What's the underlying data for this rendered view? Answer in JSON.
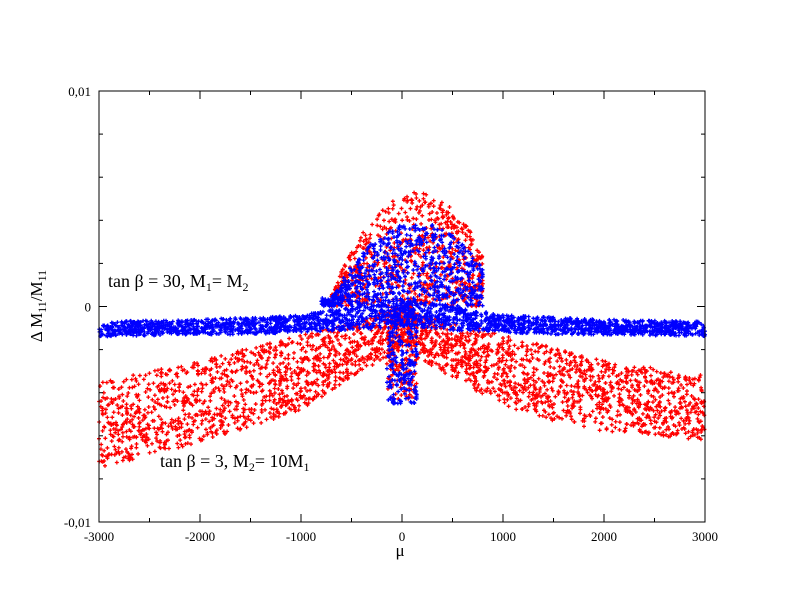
{
  "chart_data": {
    "type": "scatter",
    "title": "",
    "xlabel": "μ",
    "ylabel": {
      "prefix": "Δ M",
      "sub1": "11",
      "mid": "/M",
      "sub2": "11"
    },
    "xlim": [
      -3000,
      3000
    ],
    "ylim": [
      -0.01,
      0.01
    ],
    "x_ticks": [
      -3000,
      -2000,
      -1000,
      0,
      1000,
      2000,
      3000
    ],
    "x_tick_labels": [
      "-3000",
      "-2000",
      "-1000",
      "0",
      "1000",
      "2000",
      "3000"
    ],
    "y_ticks": [
      -0.01,
      0,
      0.01
    ],
    "y_tick_labels": [
      "-0,01",
      "0",
      "0,01"
    ],
    "grid": false,
    "series": [
      {
        "name": "tan β = 3, M2 = 10M1",
        "color": "#ff0000",
        "band_envelope": {
          "x": [
            -3000,
            -2000,
            -1500,
            -1000,
            -500,
            0,
            500,
            1000,
            1500,
            2000,
            3000
          ],
          "y_upper": [
            -0.0035,
            -0.0025,
            -0.0019,
            -0.0013,
            -0.0007,
            0.0,
            -0.0007,
            -0.0013,
            -0.0019,
            -0.0025,
            -0.0032
          ],
          "y_lower": [
            -0.0075,
            -0.0063,
            -0.0056,
            -0.0048,
            -0.0033,
            -0.002,
            -0.0033,
            -0.0046,
            -0.0053,
            -0.0058,
            -0.0062
          ]
        },
        "central_spread": {
          "x_range": [
            -700,
            800
          ],
          "y_max": 0.0053,
          "y_min": -0.0043
        }
      },
      {
        "name": "tan β = 30, M1 = M2",
        "color": "#0000ff",
        "band_envelope": {
          "x": [
            -3000,
            -2000,
            -1500,
            -1000,
            -500,
            0,
            500,
            1000,
            1500,
            2000,
            3000
          ],
          "y_upper": [
            -0.0007,
            -0.0006,
            -0.0005,
            -0.0004,
            0.0,
            0.0003,
            0.0,
            -0.0004,
            -0.0005,
            -0.0006,
            -0.0007
          ],
          "y_lower": [
            -0.0014,
            -0.0013,
            -0.0013,
            -0.0012,
            -0.0011,
            -0.0009,
            -0.0011,
            -0.0012,
            -0.0013,
            -0.0013,
            -0.0014
          ]
        },
        "central_spread": {
          "x_range": [
            -800,
            800
          ],
          "y_max": 0.0039,
          "y_min": -0.0045
        }
      }
    ],
    "annotations": [
      {
        "name": "annotation-tanbeta-30",
        "data_pos": [
          -2900,
          0.0005
        ],
        "base": "tan β = 30, M",
        "s1": "1",
        "mid": "= M",
        "s2": "2",
        "end": ""
      },
      {
        "name": "annotation-tanbeta-3",
        "data_pos": [
          -2400,
          -0.0075
        ],
        "base": "tan β = 3, M",
        "s1": "2",
        "mid": "= 10M",
        "s2": "1",
        "end": ""
      }
    ]
  }
}
